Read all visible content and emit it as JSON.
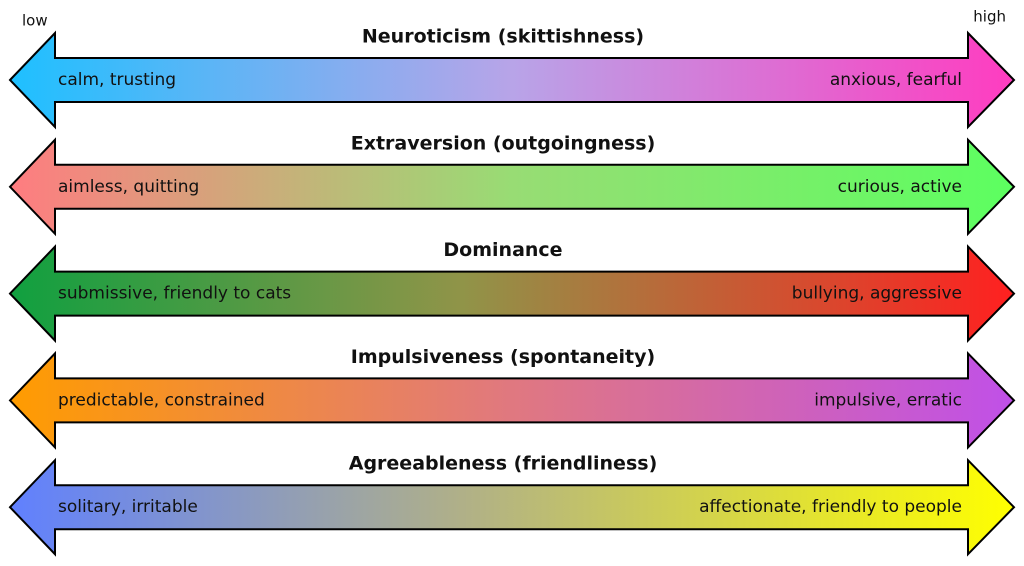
{
  "low": "low",
  "high": "high",
  "rows": [
    {
      "title": "Neuroticism (skittishness)",
      "left": "calm, trusting",
      "right": "anxious, fearful"
    },
    {
      "title": "Extraversion (outgoingness)",
      "left": "aimless, quitting",
      "right": "curious, active"
    },
    {
      "title": "Dominance",
      "left": "submissive, friendly to cats",
      "right": "bullying, aggressive"
    },
    {
      "title": "Impulsiveness (spontaneity)",
      "left": "predictable, constrained",
      "right": "impulsive, erratic"
    },
    {
      "title": "Agreeableness (friendliness)",
      "left": "solitary, irritable",
      "right": "affectionate, friendly to people"
    }
  ]
}
